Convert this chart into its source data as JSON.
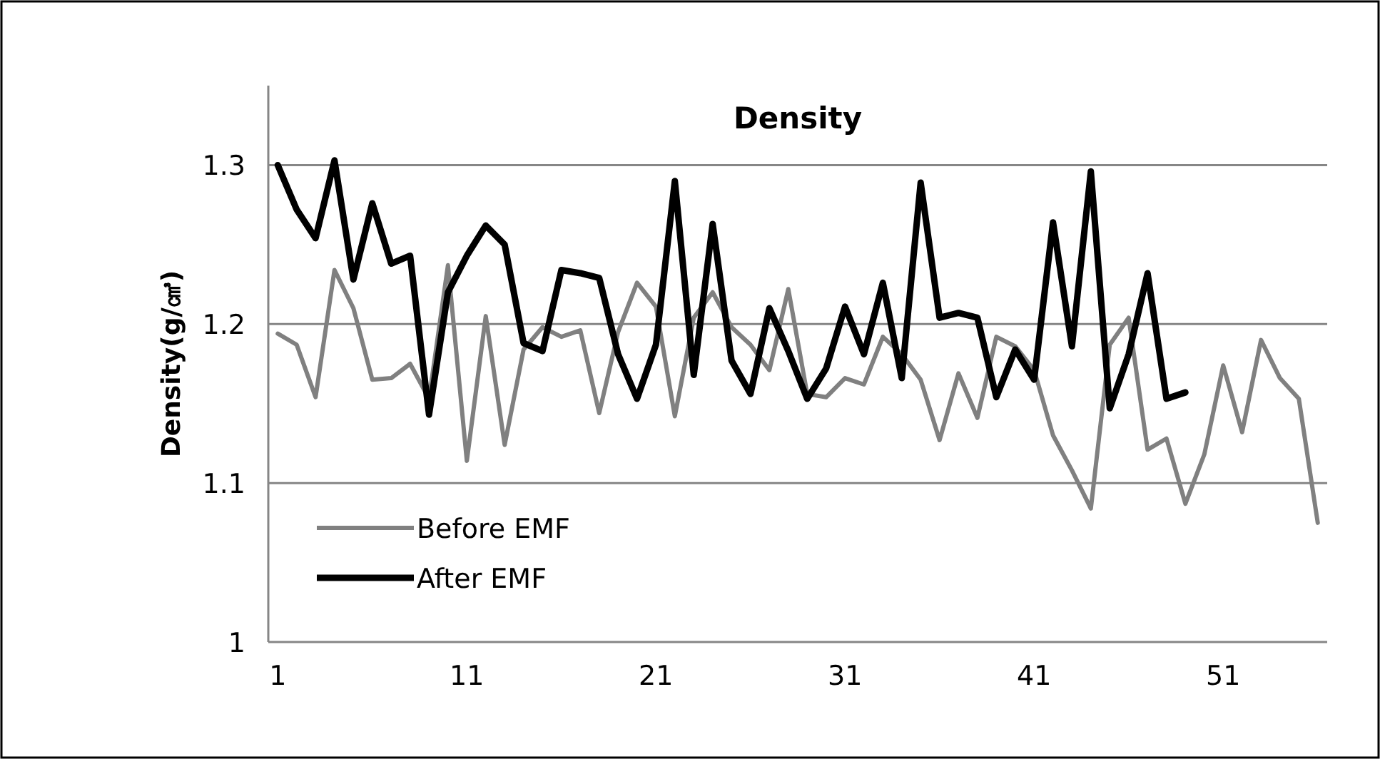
{
  "chart_data": {
    "type": "line",
    "title": "Density",
    "ylabel": "Density(g/㎤)",
    "x": [
      1,
      2,
      3,
      4,
      5,
      6,
      7,
      8,
      9,
      10,
      11,
      12,
      13,
      14,
      15,
      16,
      17,
      18,
      19,
      20,
      21,
      22,
      23,
      24,
      25,
      26,
      27,
      28,
      29,
      30,
      31,
      32,
      33,
      34,
      35,
      36,
      37,
      38,
      39,
      40,
      41,
      42,
      43,
      44,
      45,
      46,
      47,
      48,
      49,
      50,
      51,
      52,
      53,
      54,
      55,
      56
    ],
    "xlim": [
      0.5,
      56.5
    ],
    "xticks": [
      1,
      11,
      21,
      31,
      41,
      51
    ],
    "ylim": [
      1,
      1.35
    ],
    "yticks": [
      1,
      1.1,
      1.2,
      1.3
    ],
    "grid": "y",
    "legend": "bottom left",
    "series": [
      {
        "name": "Before EMF",
        "color": "#808080",
        "values": [
          1.194,
          1.187,
          1.154,
          1.234,
          1.21,
          1.165,
          1.166,
          1.175,
          1.153,
          1.237,
          1.114,
          1.205,
          1.124,
          1.184,
          1.198,
          1.192,
          1.196,
          1.144,
          1.195,
          1.226,
          1.211,
          1.142,
          1.204,
          1.22,
          1.198,
          1.187,
          1.171,
          1.222,
          1.156,
          1.154,
          1.166,
          1.162,
          1.192,
          1.181,
          1.165,
          1.127,
          1.169,
          1.141,
          1.192,
          1.186,
          1.171,
          1.13,
          1.108,
          1.084,
          1.187,
          1.204,
          1.121,
          1.128,
          1.087,
          1.118,
          1.174,
          1.132,
          1.19,
          1.166,
          1.153,
          1.075
        ]
      },
      {
        "name": "After EMF",
        "color": "#000000",
        "x": [
          1,
          2,
          3,
          4,
          5,
          6,
          7,
          8,
          9,
          10,
          11,
          12,
          13,
          14,
          15,
          16,
          17,
          18,
          19,
          20,
          21,
          22,
          23,
          24,
          25,
          26,
          27,
          28,
          29,
          30,
          31,
          32,
          33,
          34,
          35,
          36,
          37,
          38,
          39,
          40,
          41,
          42,
          43,
          44,
          45,
          46,
          47,
          48,
          49
        ],
        "values": [
          1.3,
          1.272,
          1.254,
          1.303,
          1.228,
          1.276,
          1.238,
          1.243,
          1.143,
          1.22,
          1.243,
          1.262,
          1.25,
          1.188,
          1.183,
          1.234,
          1.232,
          1.229,
          1.181,
          1.153,
          1.187,
          1.29,
          1.168,
          1.263,
          1.177,
          1.156,
          1.21,
          1.183,
          1.153,
          1.172,
          1.211,
          1.181,
          1.226,
          1.166,
          1.289,
          1.204,
          1.207,
          1.204,
          1.154,
          1.184,
          1.165,
          1.264,
          1.186,
          1.296,
          1.147,
          1.181,
          1.232,
          1.153,
          1.157
        ]
      }
    ]
  }
}
